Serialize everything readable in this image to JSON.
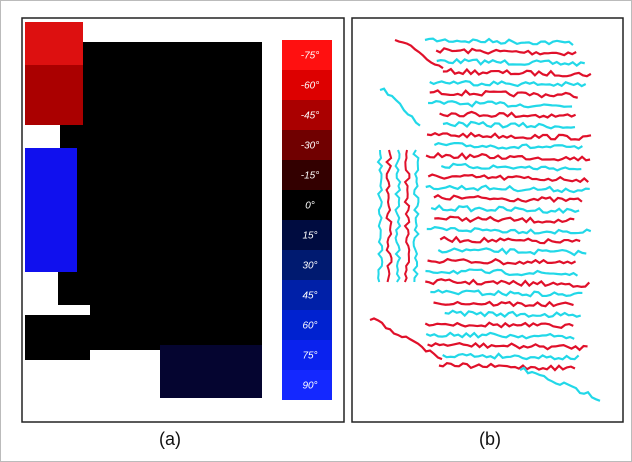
{
  "figure": {
    "legend": [
      "-75°",
      "-60°",
      "-45°",
      "-30°",
      "-15°",
      "0°",
      "15°",
      "30°",
      "45°",
      "60°",
      "75°",
      "90°"
    ],
    "captions": [
      "(a)",
      "(b)"
    ]
  }
}
